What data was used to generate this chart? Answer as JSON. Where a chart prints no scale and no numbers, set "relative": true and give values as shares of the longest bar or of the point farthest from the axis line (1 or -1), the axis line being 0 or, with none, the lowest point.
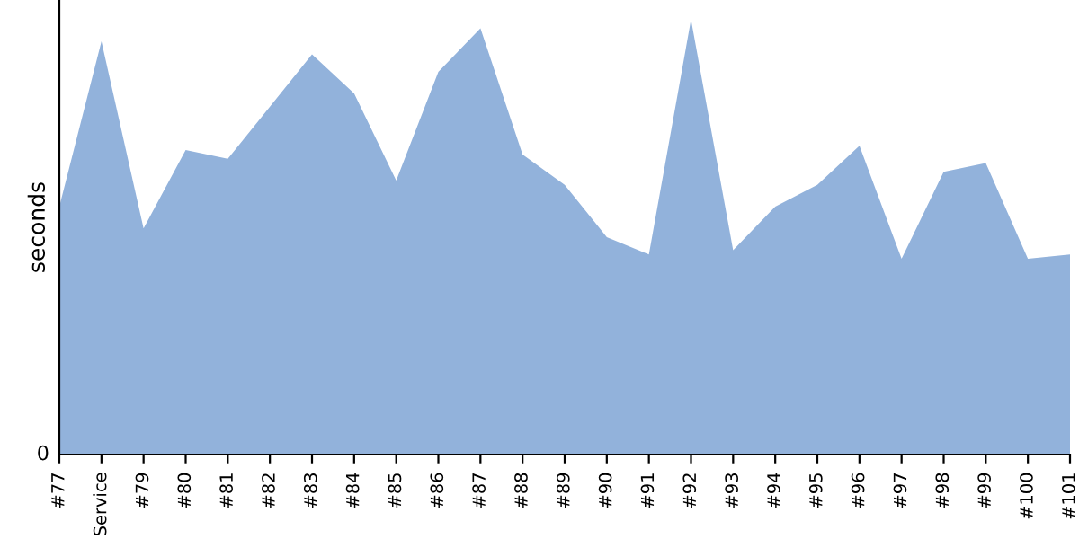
{
  "chart_data": {
    "type": "area",
    "ylabel": "seconds",
    "relative": true,
    "annotations": [
      "0"
    ],
    "color": "#92b2db",
    "categories": [
      "#77",
      "Service",
      "#79",
      "#80",
      "#81",
      "#82",
      "#83",
      "#84",
      "#85",
      "#86",
      "#87",
      "#88",
      "#89",
      "#90",
      "#91",
      "#92",
      "#93",
      "#94",
      "#95",
      "#96",
      "#97",
      "#98",
      "#99",
      "#100",
      "#101"
    ],
    "values": [
      0.57,
      0.95,
      0.52,
      0.7,
      0.68,
      0.8,
      0.92,
      0.83,
      0.63,
      0.88,
      0.98,
      0.69,
      0.62,
      0.5,
      0.46,
      1.0,
      0.47,
      0.57,
      0.62,
      0.71,
      0.45,
      0.65,
      0.67,
      0.45,
      0.46
    ],
    "grid": false,
    "legend": false
  }
}
